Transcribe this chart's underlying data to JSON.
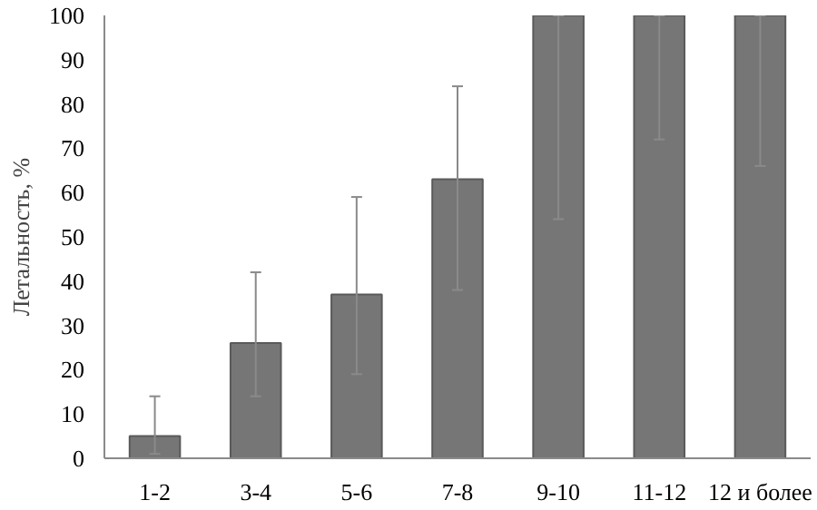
{
  "chart_data": {
    "type": "bar",
    "ylabel": "Летальность, %",
    "categories": [
      "1-2",
      "3-4",
      "5-6",
      "7-8",
      "9-10",
      "11-12",
      "12 и более"
    ],
    "values": [
      5,
      26,
      37,
      63,
      100,
      100,
      100
    ],
    "errors": [
      [
        1,
        14
      ],
      [
        14,
        42
      ],
      [
        19,
        59
      ],
      [
        38,
        84
      ],
      [
        54,
        100
      ],
      [
        72,
        100
      ],
      [
        66,
        100
      ]
    ],
    "color": "#767676",
    "ylim": [
      0,
      100
    ],
    "yticks": [
      0,
      10,
      20,
      30,
      40,
      50,
      60,
      70,
      80,
      90,
      100
    ],
    "grid": false
  }
}
